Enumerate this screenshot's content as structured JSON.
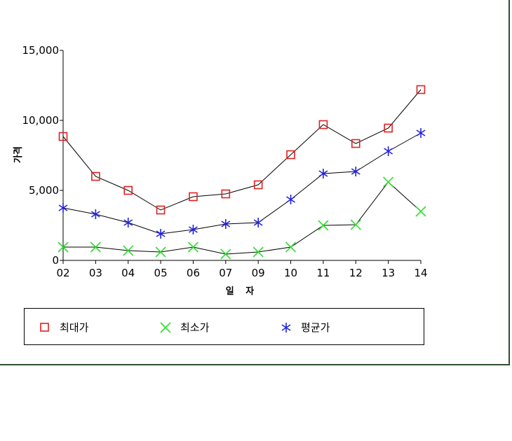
{
  "chart_data": {
    "type": "line",
    "title": "",
    "xlabel": "일 자",
    "ylabel": "가격",
    "categories": [
      "02",
      "03",
      "04",
      "05",
      "06",
      "07",
      "09",
      "10",
      "11",
      "12",
      "13",
      "14"
    ],
    "ylim": [
      0,
      15000
    ],
    "yticks": [
      0,
      5000,
      10000,
      15000
    ],
    "ytick_labels": [
      "0",
      "5,000",
      "10,000",
      "15,000"
    ],
    "grid": false,
    "legend_position": "bottom",
    "series": [
      {
        "name": "최대가",
        "marker": "square",
        "color": "#e02020",
        "values": [
          8850,
          6000,
          5000,
          3600,
          4550,
          4750,
          5400,
          7550,
          9700,
          8350,
          9450,
          12200
        ]
      },
      {
        "name": "최소가",
        "marker": "x",
        "color": "#33dd33",
        "values": [
          950,
          950,
          700,
          600,
          950,
          450,
          600,
          950,
          2500,
          2550,
          5600,
          3500
        ]
      },
      {
        "name": "평균가",
        "marker": "asterisk",
        "color": "#2222dd",
        "values": [
          3750,
          3300,
          2700,
          1900,
          2200,
          2600,
          2700,
          4350,
          6200,
          6350,
          7800,
          9100
        ]
      }
    ]
  }
}
